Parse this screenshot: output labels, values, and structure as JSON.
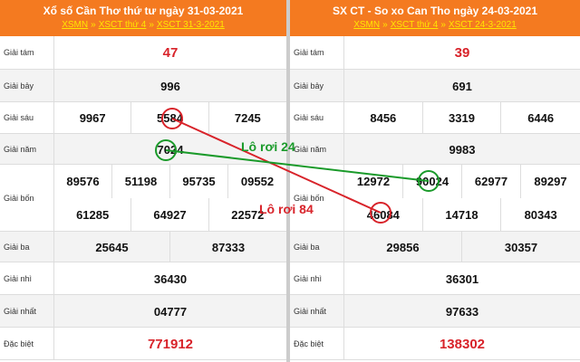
{
  "panels": [
    {
      "title": "Xổ số Cần Thơ thứ tư ngày 31-03-2021",
      "links": [
        "XSMN",
        "XSCT thứ 4",
        "XSCT 31-3-2021"
      ],
      "separator": "»",
      "rows": [
        {
          "label": "Giải tám",
          "values": [
            [
              "47"
            ]
          ],
          "color": "#d8232a"
        },
        {
          "label": "Giải bảy",
          "values": [
            [
              "996"
            ]
          ]
        },
        {
          "label": "Giải sáu",
          "values": [
            [
              "9967",
              "5584",
              "7245"
            ]
          ]
        },
        {
          "label": "Giải năm",
          "values": [
            [
              "7024"
            ]
          ]
        },
        {
          "label": "Giải bốn",
          "values": [
            [
              "89576",
              "51198",
              "95735",
              "09552"
            ],
            [
              "61285",
              "64927",
              "22572"
            ]
          ]
        },
        {
          "label": "Giải ba",
          "values": [
            [
              "25645",
              "87333"
            ]
          ]
        },
        {
          "label": "Giải nhì",
          "values": [
            [
              "36430"
            ]
          ]
        },
        {
          "label": "Giải nhất",
          "values": [
            [
              "04777"
            ]
          ]
        },
        {
          "label": "Đặc biệt",
          "values": [
            [
              "771912"
            ]
          ],
          "color": "#d8232a"
        }
      ]
    },
    {
      "title": "SX CT - So xo Can Tho ngày 24-03-2021",
      "links": [
        "XSMN",
        "XSCT thứ 4",
        "XSCT 24-3-2021"
      ],
      "separator": "»",
      "rows": [
        {
          "label": "Giải tám",
          "values": [
            [
              "39"
            ]
          ],
          "color": "#d8232a"
        },
        {
          "label": "Giải bảy",
          "values": [
            [
              "691"
            ]
          ]
        },
        {
          "label": "Giải sáu",
          "values": [
            [
              "8456",
              "3319",
              "6446"
            ]
          ]
        },
        {
          "label": "Giải năm",
          "values": [
            [
              "9983"
            ]
          ]
        },
        {
          "label": "Giải bốn",
          "values": [
            [
              "12972",
              "90024",
              "62977",
              "89297"
            ],
            [
              "46084",
              "14718",
              "80343"
            ]
          ]
        },
        {
          "label": "Giải ba",
          "values": [
            [
              "29856",
              "30357"
            ]
          ]
        },
        {
          "label": "Giải nhì",
          "values": [
            [
              "36301"
            ]
          ]
        },
        {
          "label": "Giải nhất",
          "values": [
            [
              "97633"
            ]
          ]
        },
        {
          "label": "Đặc biệt",
          "values": [
            [
              "138302"
            ]
          ],
          "color": "#d8232a"
        }
      ]
    }
  ],
  "annotations": [
    {
      "text": "Lô rơi 24",
      "color": "#1a9a2a"
    },
    {
      "text": "Lô rơi 84",
      "color": "#d8232a"
    }
  ]
}
